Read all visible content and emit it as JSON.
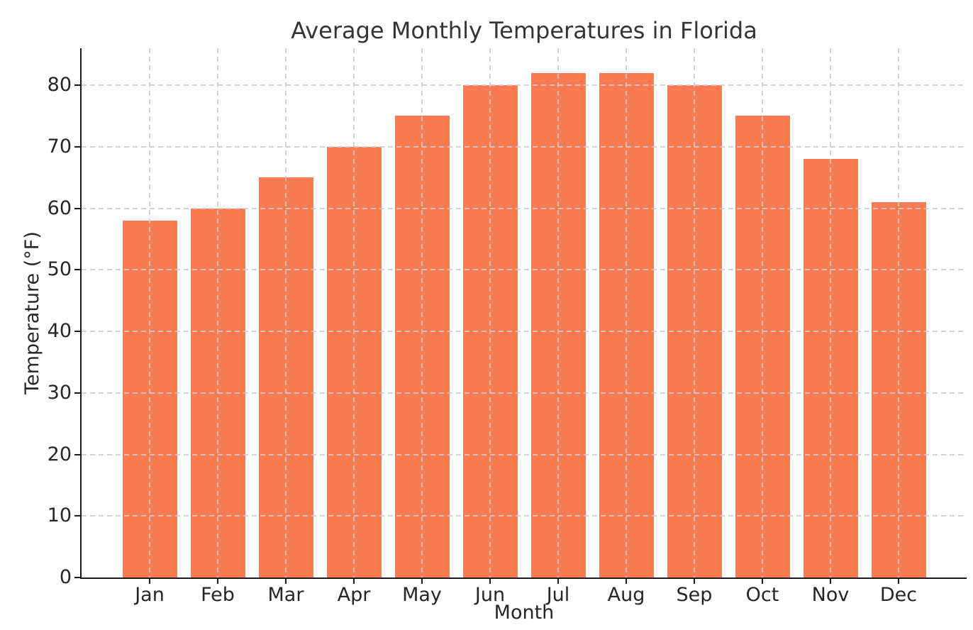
{
  "chart_data": {
    "type": "bar",
    "title": "Average Monthly Temperatures in Florida",
    "xlabel": "Month",
    "ylabel": "Temperature (°F)",
    "categories": [
      "Jan",
      "Feb",
      "Mar",
      "Apr",
      "May",
      "Jun",
      "Jul",
      "Aug",
      "Sep",
      "Oct",
      "Nov",
      "Dec"
    ],
    "values": [
      58,
      60,
      65,
      70,
      75,
      80,
      82,
      82,
      80,
      75,
      68,
      61
    ],
    "ylim": [
      0,
      86
    ],
    "yticks": [
      0,
      10,
      20,
      30,
      40,
      50,
      60,
      70,
      80
    ],
    "grid": "dashed-both-axes-above-bars",
    "legend": "none",
    "bar_color": "#F87B51",
    "grid_color": "#cbcbcb",
    "axis_color": "#1a1a1a",
    "text_color": "#262626",
    "title_color": "#343434",
    "background_color": "#ffffff"
  }
}
